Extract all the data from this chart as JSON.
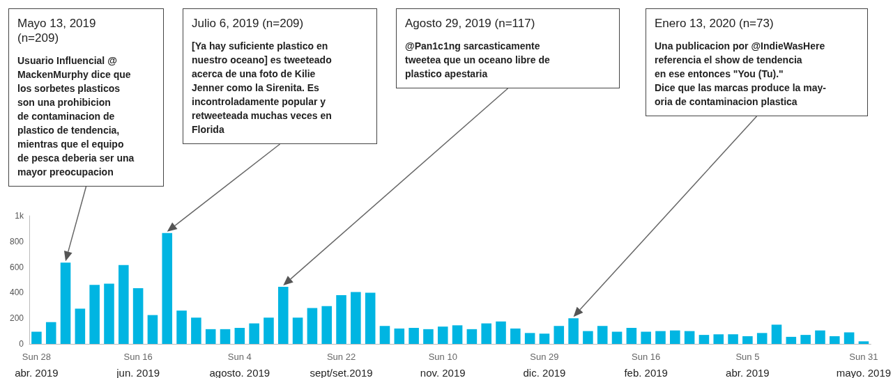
{
  "chart_data": {
    "type": "bar",
    "categories": [
      "Sun 28\nabr. 2019",
      null,
      null,
      null,
      null,
      null,
      null,
      "Sun 16\njun. 2019",
      null,
      null,
      null,
      null,
      null,
      null,
      "Sun 4\nagosto. 2019",
      null,
      null,
      null,
      null,
      null,
      null,
      "Sun 22\nsept/set.2019",
      null,
      null,
      null,
      null,
      null,
      null,
      "Sun 10\nnov. 2019",
      null,
      null,
      null,
      null,
      null,
      null,
      "Sun 29\ndic. 2019",
      null,
      null,
      null,
      null,
      null,
      null,
      "Sun 16\nfeb. 2019",
      null,
      null,
      null,
      null,
      null,
      null,
      "Sun 5\nabr. 2019",
      null,
      null,
      null,
      null,
      null,
      null,
      null,
      "Sun 31\nmayo. 2019"
    ],
    "values": [
      95,
      170,
      635,
      275,
      460,
      470,
      615,
      435,
      225,
      865,
      260,
      205,
      115,
      115,
      125,
      160,
      205,
      445,
      205,
      280,
      295,
      380,
      405,
      400,
      140,
      120,
      125,
      115,
      135,
      145,
      115,
      160,
      175,
      120,
      85,
      80,
      140,
      200,
      100,
      140,
      95,
      125,
      95,
      100,
      105,
      100,
      70,
      75,
      75,
      60,
      85,
      150,
      55,
      70,
      105,
      60,
      90,
      20
    ],
    "color": "#00b5e2",
    "ylim": [
      0,
      1000
    ],
    "yticks": [
      0,
      200,
      400,
      600,
      800,
      {
        "value": 1000,
        "label": "1k"
      }
    ],
    "grid": false,
    "annotations": [
      "Mayo 13, 2019\n(n=209)",
      "Usuario Influencial @\nMackenMurphy dice que\nlos sorbetes plasticos\nson una prohibicion\nde contaminacion de\nplastico de tendencia,\nmientras que el equipo\nde pesca deberia ser una\nmayor preocupacion",
      "Julio 6, 2019 (n=209)",
      "[Ya hay suficiente plastico en\nnuestro oceano] es tweeteado\nacerca de una foto de Kilie\nJenner como la Sirenita. Es\nincontroladamente popular y\nretweeteada muchas veces en\nFlorida",
      "Agosto 29, 2019 (n=117)",
      "@Pan1c1ng sarcasticamente\ntweetea que un oceano libre de\nplastico apestaria",
      "Enero 13, 2020 (n=73)",
      "Una publicacion por @IndieWasHere\nreferencia el show de tendencia\nen ese entonces \"You (Tu).\"\nDice que las marcas produce la may-\noria de contaminacion plastica"
    ]
  }
}
